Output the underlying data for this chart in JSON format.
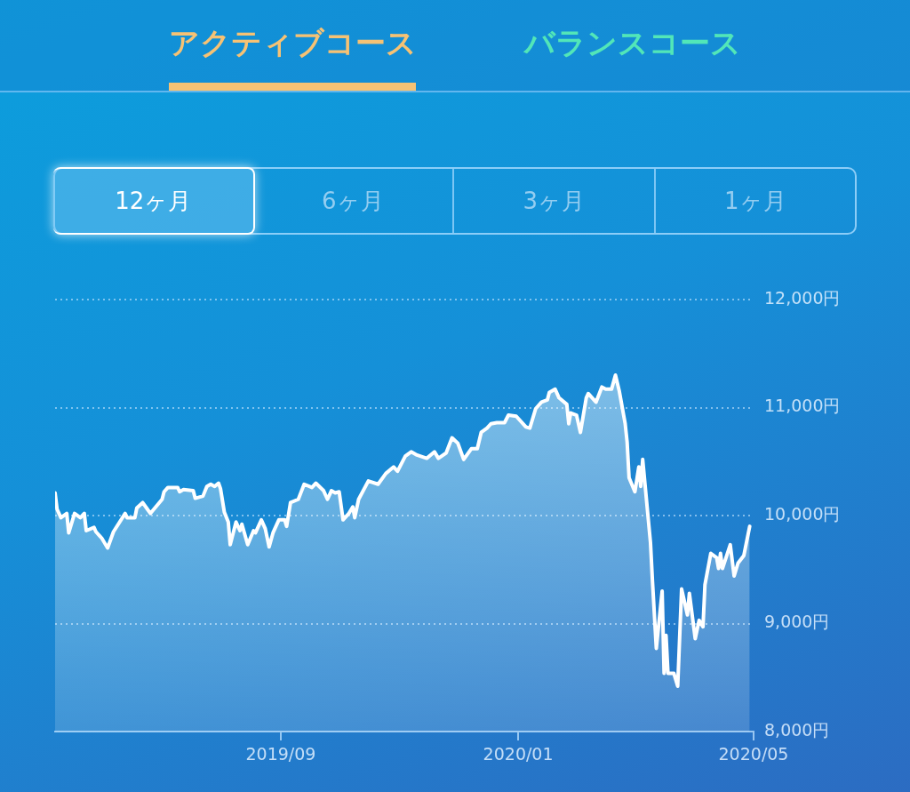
{
  "chart_data": {
    "type": "area",
    "annotations": [
      "アクティブコース",
      "バランスコース",
      "12ヶ月",
      "6ヶ月",
      "3ヶ月",
      "1ヶ月"
    ],
    "x": [
      "2019-05-08",
      "2019-05-09",
      "2019-05-11",
      "2019-05-14",
      "2019-05-15",
      "2019-05-18",
      "2019-05-21",
      "2019-05-23",
      "2019-05-24",
      "2019-05-28",
      "2019-05-29",
      "2019-05-31",
      "2019-06-01",
      "2019-06-04",
      "2019-06-07",
      "2019-06-13",
      "2019-06-14",
      "2019-06-18",
      "2019-06-19",
      "2019-06-22",
      "2019-06-24",
      "2019-06-26",
      "2019-07-02",
      "2019-07-03",
      "2019-07-05",
      "2019-07-10",
      "2019-07-11",
      "2019-07-13",
      "2019-07-18",
      "2019-07-19",
      "2019-07-23",
      "2019-07-25",
      "2019-07-27",
      "2019-07-29",
      "2019-07-31",
      "2019-08-01",
      "2019-08-03",
      "2019-08-05",
      "2019-08-06",
      "2019-08-09",
      "2019-08-11",
      "2019-08-12",
      "2019-08-15",
      "2019-08-18",
      "2019-08-19",
      "2019-08-22",
      "2019-08-24",
      "2019-08-26",
      "2019-08-28",
      "2019-08-31",
      "2019-09-03",
      "2019-09-04",
      "2019-09-06",
      "2019-09-10",
      "2019-09-13",
      "2019-09-17",
      "2019-09-19",
      "2019-09-23",
      "2019-09-25",
      "2019-09-27",
      "2019-09-29",
      "2019-10-01",
      "2019-10-03",
      "2019-10-06",
      "2019-10-08",
      "2019-10-09",
      "2019-10-11",
      "2019-10-16",
      "2019-10-21",
      "2019-10-25",
      "2019-10-29",
      "2019-10-31",
      "2019-11-04",
      "2019-11-07",
      "2019-11-10",
      "2019-11-15",
      "2019-11-19",
      "2019-11-21",
      "2019-11-25",
      "2019-11-28",
      "2019-12-01",
      "2019-12-04",
      "2019-12-08",
      "2019-12-11",
      "2019-12-13",
      "2019-12-16",
      "2019-12-18",
      "2019-12-21",
      "2019-12-25",
      "2019-12-27",
      "2019-12-31",
      "2020-01-05",
      "2020-01-07",
      "2020-01-10",
      "2020-01-13",
      "2020-01-16",
      "2020-01-17",
      "2020-01-20",
      "2020-01-22",
      "2020-01-26",
      "2020-01-27",
      "2020-01-28",
      "2020-01-31",
      "2020-02-02",
      "2020-02-05",
      "2020-02-06",
      "2020-02-10",
      "2020-02-13",
      "2020-02-15",
      "2020-02-18",
      "2020-02-20",
      "2020-02-22",
      "2020-02-25",
      "2020-02-26",
      "2020-02-27",
      "2020-03-01",
      "2020-03-03",
      "2020-03-04",
      "2020-03-05",
      "2020-03-09",
      "2020-03-10",
      "2020-03-12",
      "2020-03-15",
      "2020-03-16",
      "2020-03-17",
      "2020-03-18",
      "2020-03-21",
      "2020-03-23",
      "2020-03-25",
      "2020-03-28",
      "2020-03-29",
      "2020-04-01",
      "2020-04-03",
      "2020-04-05",
      "2020-04-06",
      "2020-04-09",
      "2020-04-12",
      "2020-04-13",
      "2020-04-14",
      "2020-04-15",
      "2020-04-19",
      "2020-04-21",
      "2020-04-23",
      "2020-04-26",
      "2020-04-29"
    ],
    "series": [
      {
        "color": "#ffffff",
        "values": [
          10210,
          10060,
          9980,
          10020,
          9840,
          10020,
          9980,
          10020,
          9860,
          9890,
          9850,
          9810,
          9790,
          9700,
          9850,
          10020,
          9980,
          9980,
          10070,
          10120,
          10070,
          10020,
          10150,
          10220,
          10260,
          10260,
          10220,
          10240,
          10230,
          10160,
          10180,
          10270,
          10290,
          10270,
          10300,
          10250,
          10030,
          9940,
          9730,
          9940,
          9860,
          9920,
          9730,
          9860,
          9840,
          9960,
          9880,
          9710,
          9840,
          9960,
          9960,
          9900,
          10120,
          10150,
          10290,
          10260,
          10300,
          10230,
          10150,
          10230,
          10210,
          10220,
          9960,
          10020,
          10080,
          9980,
          10150,
          10320,
          10290,
          10390,
          10450,
          10410,
          10550,
          10590,
          10560,
          10530,
          10590,
          10530,
          10580,
          10720,
          10670,
          10520,
          10620,
          10620,
          10770,
          10810,
          10850,
          10860,
          10860,
          10930,
          10920,
          10820,
          10810,
          10990,
          11050,
          11070,
          11140,
          11170,
          11090,
          11030,
          10850,
          10950,
          10930,
          10770,
          11090,
          11130,
          11050,
          11190,
          11170,
          11170,
          11300,
          11150,
          10850,
          10680,
          10350,
          10220,
          10450,
          10270,
          10520,
          9750,
          9400,
          8770,
          9300,
          8540,
          8890,
          8540,
          8540,
          8420,
          9320,
          9080,
          9280,
          8860,
          9030,
          8970,
          9360,
          9650,
          9610,
          9510,
          9650,
          9510,
          9730,
          9440,
          9560,
          9630,
          9900
        ]
      }
    ],
    "xlim": [
      "2019-05-08",
      "2020-05-01"
    ],
    "xticks": [
      {
        "value": "2019-09-01",
        "label": "2019/09"
      },
      {
        "value": "2020-01-01",
        "label": "2020/01"
      },
      {
        "value": "2020-05-01",
        "label": "2020/05"
      }
    ],
    "ylim": [
      8000,
      12000
    ],
    "yticks": [
      {
        "value": 8000,
        "label": "8,000円"
      },
      {
        "value": 9000,
        "label": "9,000円"
      },
      {
        "value": 10000,
        "label": "10,000円"
      },
      {
        "value": 11000,
        "label": "11,000円"
      },
      {
        "value": 12000,
        "label": "12,000円"
      }
    ],
    "grid": "y",
    "marker": "none",
    "line_style": "solid"
  }
}
